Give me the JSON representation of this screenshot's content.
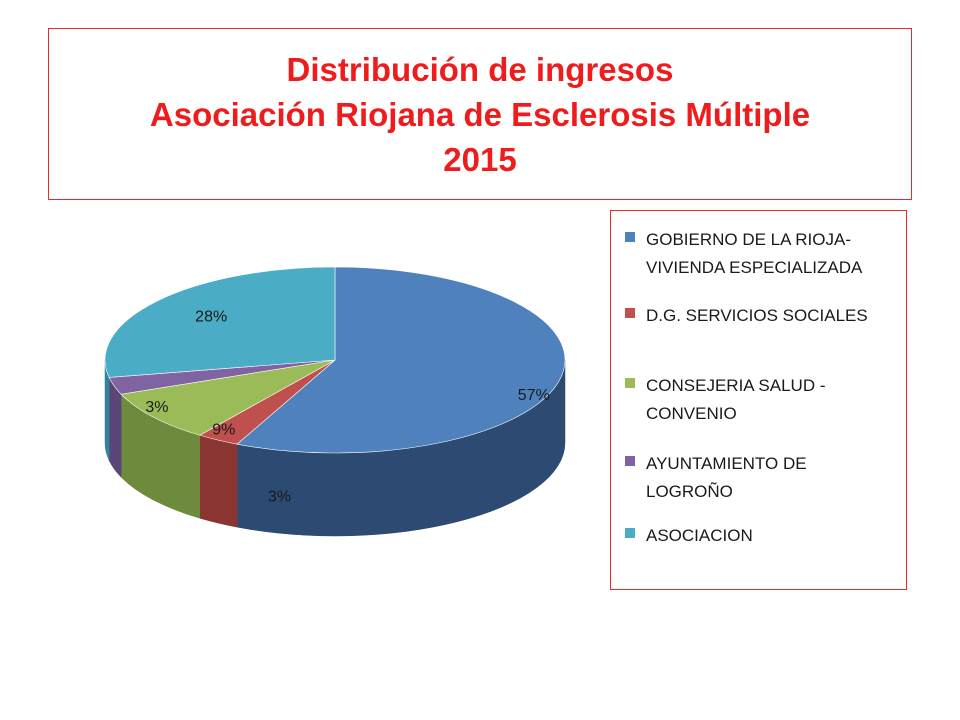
{
  "title": {
    "line1": "Distribución de ingresos",
    "line2": "Asociación Riojana de Esclerosis Múltiple",
    "line3": "2015"
  },
  "chart_data": {
    "type": "pie",
    "title": "Distribución de ingresos Asociación Riojana de Esclerosis Múltiple 2015",
    "style": "3d",
    "legend_position": "right",
    "categories": [
      "GOBIERNO DE LA RIOJA-\nVIVIENDA ESPECIALIZADA",
      "D.G. SERVICIOS SOCIALES",
      "CONSEJERIA SALUD -\nCONVENIO",
      "AYUNTAMIENTO DE\nLOGROÑO",
      "ASOCIACION"
    ],
    "values": [
      57,
      3,
      9,
      3,
      28
    ],
    "labels": [
      "57%",
      "3%",
      "9%",
      "3%",
      "28%"
    ],
    "colors": [
      "#4f81bd",
      "#c0504d",
      "#9bbb59",
      "#8064a2",
      "#4bacc6"
    ],
    "side_colors": [
      "#2c4a72",
      "#8a3532",
      "#6e8a3c",
      "#5a4577",
      "#33849a"
    ]
  }
}
